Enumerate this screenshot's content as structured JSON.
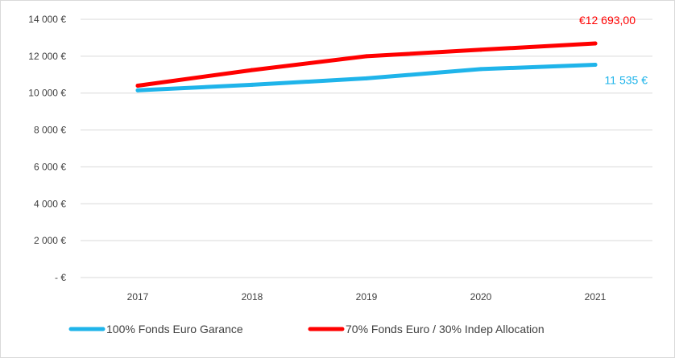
{
  "chart_data": {
    "type": "line",
    "title": "",
    "xlabel": "",
    "ylabel": "",
    "categories": [
      "2017",
      "2018",
      "2019",
      "2020",
      "2021"
    ],
    "ylim": [
      0,
      14000
    ],
    "y_ticks": [
      0,
      2000,
      4000,
      6000,
      8000,
      10000,
      12000,
      14000
    ],
    "y_tick_labels": [
      "-  €",
      "2 000 €",
      "4 000 €",
      "6 000 €",
      "8 000 €",
      "10 000 €",
      "12 000 €",
      "14 000 €"
    ],
    "grid": "horizontal",
    "legend_position": "bottom",
    "series": [
      {
        "name": "100% Fonds Euro Garance",
        "color": "#1fb4ea",
        "values": [
          10150,
          10450,
          10800,
          11300,
          11535
        ],
        "end_label": "11 535 €"
      },
      {
        "name": "70% Fonds Euro / 30% Indep Allocation",
        "color": "#ff0000",
        "values": [
          10400,
          11250,
          12000,
          12350,
          12693
        ],
        "end_label": "€12 693,00"
      }
    ]
  }
}
